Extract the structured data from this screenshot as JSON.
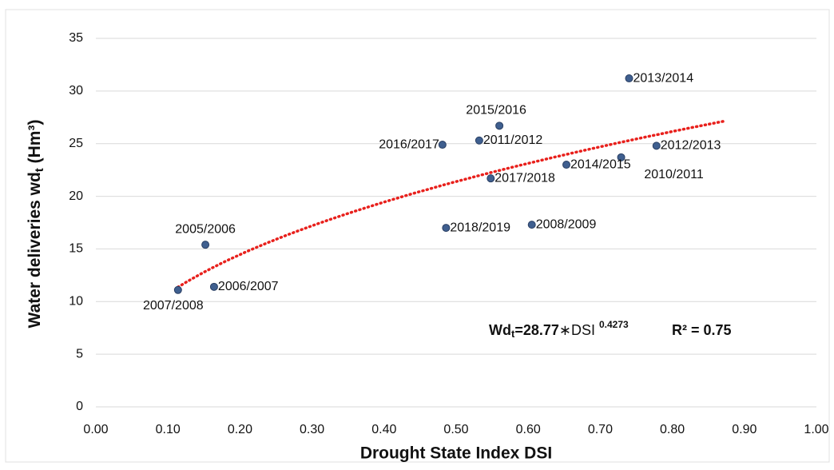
{
  "chart_data": {
    "type": "scatter",
    "x_axis_label": "Drought State Index DSI",
    "y_axis_label": {
      "main": "Water deliveries wd",
      "sub": "t",
      "unit": " (Hm³)"
    },
    "labels": [
      "2005/2006",
      "2006/2007",
      "2007/2008",
      "2008/2009",
      "2010/2011",
      "2011/2012",
      "2012/2013",
      "2013/2014",
      "2014/2015",
      "2015/2016",
      "2016/2017",
      "2017/2018",
      "2018/2019"
    ],
    "x": [
      0.152,
      0.164,
      0.114,
      0.605,
      0.729,
      0.532,
      0.778,
      0.74,
      0.653,
      0.56,
      0.481,
      0.548,
      0.486
    ],
    "y": [
      15.4,
      11.4,
      11.1,
      17.3,
      23.7,
      25.3,
      24.8,
      31.2,
      23.0,
      26.7,
      24.9,
      21.7,
      17.0
    ],
    "color": "#3f5f8f",
    "xlim": [
      0,
      1
    ],
    "xticks": [
      {
        "value": 0,
        "label": "0.00"
      },
      {
        "value": 0.1,
        "label": "0.10"
      },
      {
        "value": 0.2,
        "label": "0.20"
      },
      {
        "value": 0.3,
        "label": "0.30"
      },
      {
        "value": 0.4,
        "label": "0.40"
      },
      {
        "value": 0.5,
        "label": "0.50"
      },
      {
        "value": 0.6,
        "label": "0.60"
      },
      {
        "value": 0.7,
        "label": "0.70"
      },
      {
        "value": 0.8,
        "label": "0.80"
      },
      {
        "value": 0.9,
        "label": "0.90"
      },
      {
        "value": 1,
        "label": "1.00"
      }
    ],
    "ylim": [
      0,
      35
    ],
    "yticks": [
      0,
      5,
      10,
      15,
      20,
      25,
      30,
      35
    ],
    "grid": true,
    "trendline": {
      "color": "#e8201c",
      "coefficient": 28.77,
      "exponent": 0.4273,
      "r2": 0.75,
      "x_range": [
        0.114,
        0.875
      ]
    },
    "equation": {
      "lhs": "Wd",
      "lhs_sub": "t",
      "equals": "=",
      "operator": "∗DSI ",
      "r2_label": "R² = "
    }
  }
}
